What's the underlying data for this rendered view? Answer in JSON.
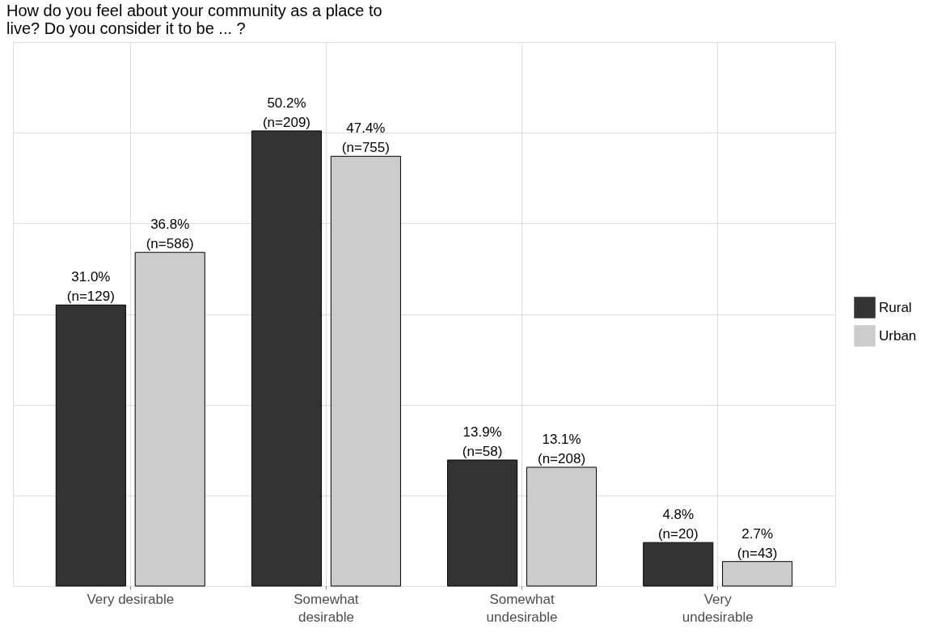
{
  "chart_data": {
    "type": "bar",
    "title": "How do you feel about your community as a place to\nlive? Do you consider it to be ... ?",
    "categories": [
      "Very desirable",
      "Somewhat\ndesirable",
      "Somewhat\nundesirable",
      "Very\nundesirable"
    ],
    "series": [
      {
        "name": "Rural",
        "color": "#333333",
        "values": [
          31.0,
          50.2,
          13.9,
          4.8
        ],
        "value_labels": [
          "31.0%\n(n=129)",
          "50.2%\n(n=209)",
          "13.9%\n(n=58)",
          "4.8%\n(n=20)"
        ]
      },
      {
        "name": "Urban",
        "color": "#cccccc",
        "values": [
          36.8,
          47.4,
          13.1,
          2.7
        ],
        "value_labels": [
          "36.8%\n(n=586)",
          "47.4%\n(n=755)",
          "13.1%\n(n=208)",
          "2.7%\n(n=43)"
        ]
      }
    ],
    "ylim": [
      0,
      60
    ],
    "yticks": [
      {
        "value": 0,
        "label": null
      },
      {
        "value": 10,
        "label": null
      },
      {
        "value": 20,
        "label": null
      },
      {
        "value": 30,
        "label": null
      },
      {
        "value": 40,
        "label": null
      },
      {
        "value": 50,
        "label": null
      },
      {
        "value": 60,
        "label": null
      }
    ],
    "tick_labels": "x",
    "grid": true,
    "legend": "right"
  }
}
